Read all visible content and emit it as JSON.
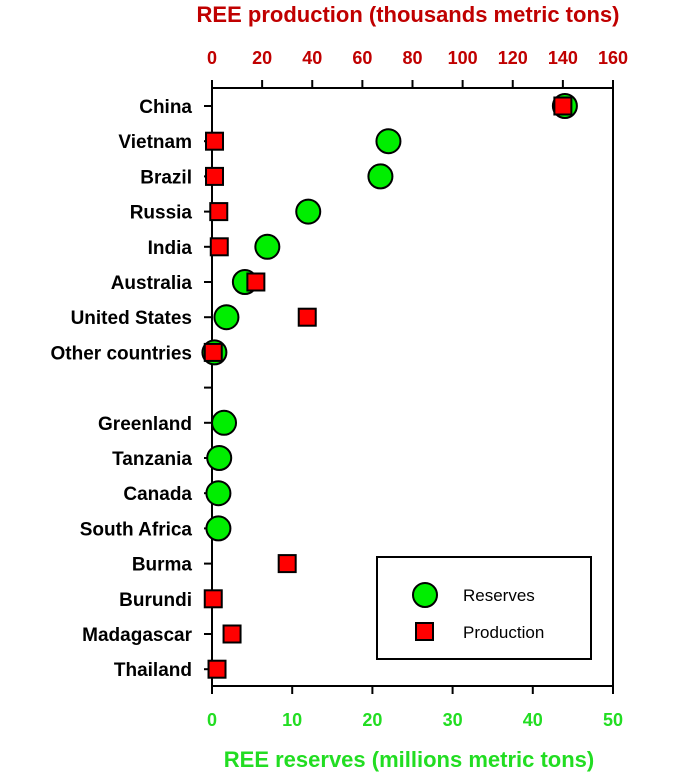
{
  "chart_data": {
    "type": "scatter",
    "title_top_axis": "REE production (thousands metric tons)",
    "title_bottom_axis": "REE reserves (millions metric tons)",
    "categories": [
      "China",
      "Vietnam",
      "Brazil",
      "Russia",
      "India",
      "Australia",
      "United States",
      "Other countries",
      "",
      "Greenland",
      "Tanzania",
      "Canada",
      "South Africa",
      "Burma",
      "Burundi",
      "Madagascar",
      "Thailand"
    ],
    "top_axis": {
      "range": [
        0,
        160
      ],
      "ticks": [
        "0",
        "20",
        "40",
        "60",
        "80",
        "100",
        "120",
        "140",
        "160"
      ]
    },
    "bottom_axis": {
      "range": [
        0,
        50
      ],
      "ticks": [
        "0",
        "10",
        "20",
        "30",
        "40",
        "50"
      ]
    },
    "series": [
      {
        "name": "Reserves",
        "axis": "bottom",
        "marker": "circle",
        "color": "#00ee00",
        "values": [
          44,
          22,
          21,
          12,
          6.9,
          4.1,
          1.8,
          0.3,
          null,
          1.5,
          0.9,
          0.8,
          0.8,
          null,
          null,
          null,
          null
        ]
      },
      {
        "name": "Production",
        "axis": "top",
        "marker": "square",
        "color": "#ff0000",
        "values": [
          140,
          1,
          1,
          2.7,
          2.9,
          17.5,
          38,
          0.5,
          null,
          null,
          null,
          null,
          null,
          30,
          0.5,
          8,
          2
        ]
      }
    ],
    "legend": {
      "position": "bottom-right",
      "entries": [
        "Reserves",
        "Production"
      ]
    }
  }
}
